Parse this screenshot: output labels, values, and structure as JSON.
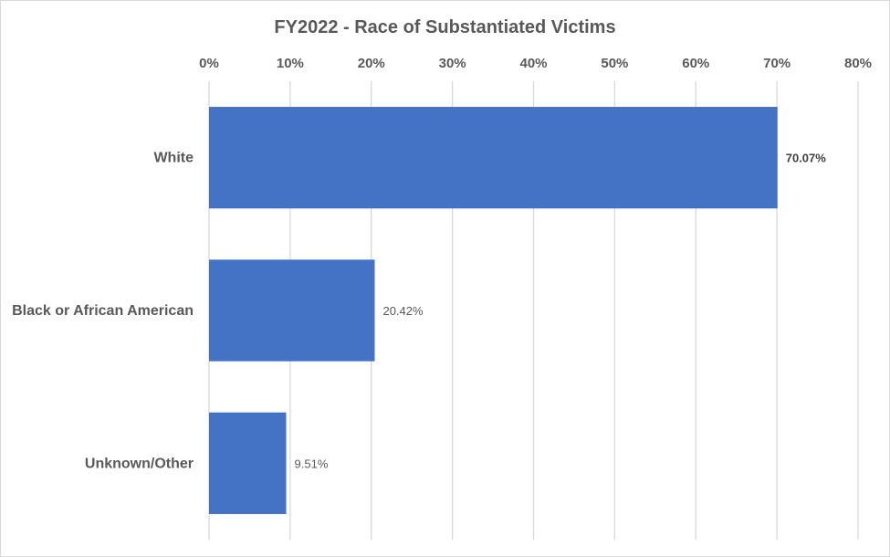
{
  "chart_data": {
    "type": "bar",
    "orientation": "horizontal",
    "title": "FY2022 - Race of Substantiated Victims",
    "xlabel": "",
    "ylabel": "",
    "categories": [
      "White",
      "Black or African American",
      "Unknown/Other"
    ],
    "values": [
      70.07,
      20.42,
      9.51
    ],
    "data_labels": [
      "70.07%",
      "20.42%",
      "9.51%"
    ],
    "xlim": [
      0,
      80
    ],
    "x_ticks": [
      0,
      10,
      20,
      30,
      40,
      50,
      60,
      70,
      80
    ],
    "x_tick_labels": [
      "0%",
      "10%",
      "20%",
      "30%",
      "40%",
      "50%",
      "60%",
      "70%",
      "80%"
    ],
    "axis_position": "top",
    "grid": true,
    "legend": "none",
    "bar_color": "#4472c4",
    "grid_color": "#d9d9d9",
    "text_color": "#595959"
  }
}
